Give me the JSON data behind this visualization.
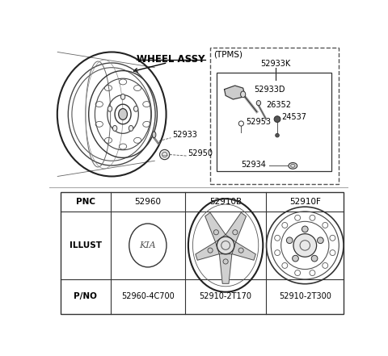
{
  "bg_color": "#ffffff",
  "wheel_assy_label": "WHEEL ASSY",
  "tpms_label": "(TPMS)",
  "table_pnc": [
    "PNC",
    "52960",
    "52910B",
    "52910F"
  ],
  "table_illust": "ILLUST",
  "table_pno": [
    "P/NO",
    "52960-4C700",
    "52910-2T170",
    "52910-2T300"
  ]
}
